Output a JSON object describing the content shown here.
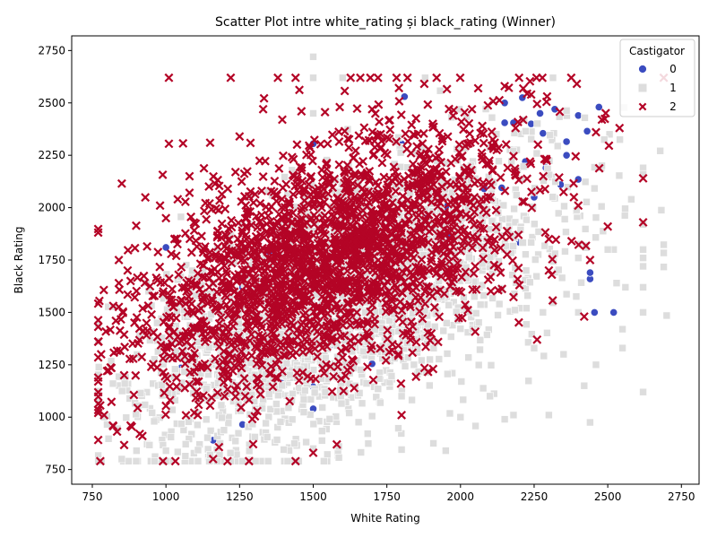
{
  "chart_data": {
    "type": "scatter",
    "title": "Scatter Plot intre white_rating și black_rating (Winner)",
    "xlabel": "White Rating",
    "ylabel": "Black Rating",
    "xlim": [
      680,
      2810
    ],
    "ylim": [
      680,
      2820
    ],
    "xticks": [
      750,
      1000,
      1250,
      1500,
      1750,
      2000,
      2250,
      2500,
      2750
    ],
    "yticks": [
      750,
      1000,
      1250,
      1500,
      1750,
      2000,
      2250,
      2500,
      2750
    ],
    "grid": false,
    "legend": {
      "title": "Castigator",
      "placement": "top-right"
    },
    "series": [
      {
        "name": "0",
        "marker": "circle",
        "color": "#3b4cc0",
        "points": [
          [
            1000,
            1810
          ],
          [
            1500,
            2305
          ],
          [
            1500,
            1595
          ],
          [
            1500,
            1145
          ],
          [
            1500,
            1040
          ],
          [
            1260,
            1620
          ],
          [
            1260,
            965
          ],
          [
            1350,
            1790
          ],
          [
            1700,
            1255
          ],
          [
            1740,
            1705
          ],
          [
            1700,
            1780
          ],
          [
            1810,
            1470
          ],
          [
            1810,
            2530
          ],
          [
            1800,
            2305
          ],
          [
            1880,
            1950
          ],
          [
            1930,
            1980
          ],
          [
            1950,
            2005
          ],
          [
            1960,
            1865
          ],
          [
            1970,
            1210
          ],
          [
            2080,
            2090
          ],
          [
            2140,
            2095
          ],
          [
            2150,
            2405
          ],
          [
            2150,
            2500
          ],
          [
            2180,
            2405
          ],
          [
            2200,
            1835
          ],
          [
            2210,
            2525
          ],
          [
            2220,
            2220
          ],
          [
            2240,
            2400
          ],
          [
            2250,
            2050
          ],
          [
            2270,
            2450
          ],
          [
            2280,
            2355
          ],
          [
            2320,
            2470
          ],
          [
            2340,
            2110
          ],
          [
            2360,
            2315
          ],
          [
            2400,
            2440
          ],
          [
            2400,
            2135
          ],
          [
            2430,
            2365
          ],
          [
            2440,
            1660
          ],
          [
            2440,
            1690
          ],
          [
            2455,
            1500
          ],
          [
            2470,
            2480
          ],
          [
            2520,
            1500
          ],
          [
            1160,
            890
          ],
          [
            1400,
            1185
          ],
          [
            1560,
            1345
          ],
          [
            2360,
            2250
          ],
          [
            2290,
            2190
          ],
          [
            1050,
            1235
          ],
          [
            1650,
            1440
          ],
          [
            1850,
            2110
          ]
        ]
      },
      {
        "name": "1",
        "marker": "square",
        "color": "#dddddd",
        "cloud": {
          "count": 2300,
          "seed": 7
        },
        "points": [
          [
            1500,
            2720
          ],
          [
            1500,
            2620
          ],
          [
            1500,
            2450
          ],
          [
            1600,
            2620
          ],
          [
            1880,
            2620
          ],
          [
            2620,
            2190
          ],
          [
            2620,
            2160
          ],
          [
            2620,
            1920
          ],
          [
            2620,
            1800
          ],
          [
            2620,
            1760
          ],
          [
            2620,
            1720
          ],
          [
            2620,
            1620
          ],
          [
            2620,
            1500
          ],
          [
            2620,
            1120
          ],
          [
            2700,
            1485
          ],
          [
            2580,
            2040
          ],
          [
            2560,
            1620
          ],
          [
            2550,
            1420
          ],
          [
            2550,
            1330
          ],
          [
            2530,
            1640
          ],
          [
            2520,
            1800
          ],
          [
            2500,
            1800
          ],
          [
            2480,
            2200
          ],
          [
            2460,
            1250
          ],
          [
            2440,
            975
          ],
          [
            2420,
            1150
          ],
          [
            2400,
            1500
          ],
          [
            2300,
            1010
          ],
          [
            2180,
            1010
          ],
          [
            2150,
            990
          ],
          [
            1950,
            840
          ],
          [
            1800,
            845
          ],
          [
            1700,
            1005
          ],
          [
            1500,
            850
          ],
          [
            1400,
            845
          ],
          [
            1150,
            820
          ],
          [
            1000,
            840
          ],
          [
            800,
            965
          ],
          [
            820,
            1160
          ],
          [
            860,
            1160
          ],
          [
            790,
            1000
          ],
          [
            850,
            800
          ],
          [
            900,
            840
          ],
          [
            960,
            980
          ],
          [
            2280,
            1500
          ],
          [
            2350,
            1300
          ],
          [
            2250,
            1330
          ],
          [
            2100,
            1100
          ],
          [
            2000,
            1000
          ],
          [
            2400,
            1760
          ]
        ]
      },
      {
        "name": "2",
        "marker": "x",
        "color": "#b40426",
        "cloud": {
          "count": 2300,
          "seed": 13
        },
        "points": [
          [
            1010,
            2620
          ],
          [
            1220,
            2620
          ],
          [
            1380,
            2620
          ],
          [
            1440,
            2620
          ],
          [
            1660,
            2620
          ],
          [
            1720,
            2620
          ],
          [
            1820,
            2620
          ],
          [
            2060,
            2570
          ],
          [
            2150,
            2580
          ],
          [
            1460,
            2460
          ],
          [
            1330,
            2470
          ],
          [
            1590,
            2480
          ],
          [
            1010,
            2305
          ],
          [
            1150,
            2310
          ],
          [
            1250,
            2340
          ],
          [
            840,
            1750
          ],
          [
            840,
            1640
          ],
          [
            870,
            1700
          ],
          [
            880,
            1650
          ],
          [
            850,
            2115
          ],
          [
            980,
            2010
          ],
          [
            1000,
            1950
          ],
          [
            1040,
            2040
          ],
          [
            1080,
            2150
          ],
          [
            800,
            1220
          ],
          [
            830,
            1460
          ],
          [
            780,
            1300
          ],
          [
            790,
            1010
          ],
          [
            820,
            960
          ],
          [
            880,
            960
          ],
          [
            920,
            910
          ],
          [
            990,
            790
          ],
          [
            1160,
            800
          ],
          [
            1440,
            790
          ],
          [
            1500,
            830
          ],
          [
            1580,
            870
          ],
          [
            1800,
            1010
          ],
          [
            2260,
            1370
          ],
          [
            2200,
            1630
          ],
          [
            2300,
            1700
          ],
          [
            2420,
            1480
          ],
          [
            2440,
            1750
          ],
          [
            2500,
            1910
          ],
          [
            2540,
            2380
          ],
          [
            2620,
            1930
          ],
          [
            2620,
            2140
          ],
          [
            2480,
            2420
          ],
          [
            2240,
            2540
          ],
          [
            2460,
            2360
          ],
          [
            2400,
            2010
          ]
        ]
      }
    ]
  }
}
